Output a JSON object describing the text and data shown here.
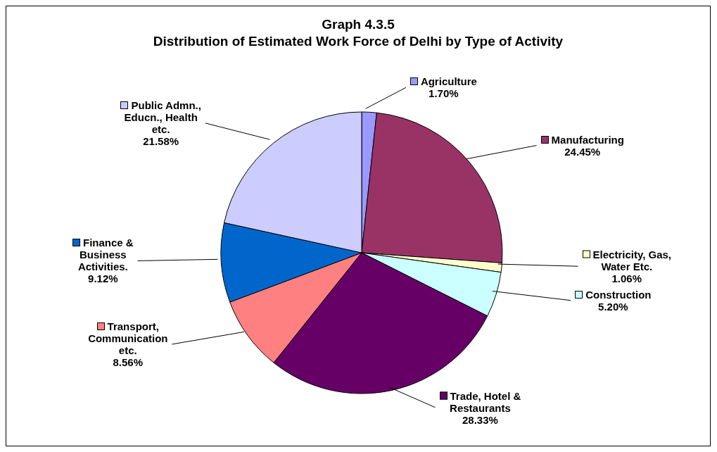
{
  "chart_data": {
    "type": "pie",
    "title": "Graph 4.3.5",
    "subtitle": "Distribution of Estimated Work Force of Delhi by Type of Activity",
    "categories": [
      "Agriculture",
      "Manufacturing",
      "Electricity, Gas, Water Etc.",
      "Construction",
      "Trade, Hotel & Restaurants",
      "Transport, Communication etc.",
      "Finance & Business Activities.",
      "Public Admn., Educn., Health etc."
    ],
    "values": [
      1.7,
      24.45,
      1.06,
      5.2,
      28.33,
      8.56,
      9.12,
      21.58
    ],
    "value_labels": [
      "1.70%",
      "24.45%",
      "1.06%",
      "5.20%",
      "28.33%",
      "8.56%",
      "9.12%",
      "21.58%"
    ],
    "legend": "right",
    "colors": [
      "#9999ff",
      "#993366",
      "#ffffcc",
      "#ccffff",
      "#660066",
      "#ff8080",
      "#0066cc",
      "#ccccff"
    ]
  }
}
